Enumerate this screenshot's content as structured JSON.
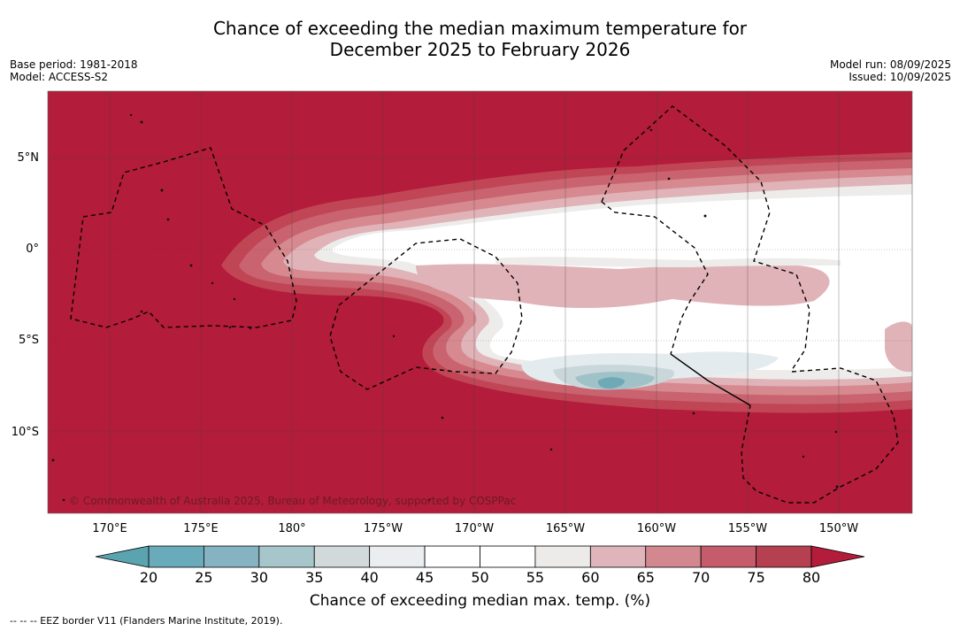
{
  "title": {
    "line1": "Chance of exceeding the median maximum temperature for",
    "line2": "December 2025 to February 2026"
  },
  "meta_left": {
    "base_period": "Base period: 1981-2018",
    "model": "Model: ACCESS-S2"
  },
  "meta_right": {
    "model_run": "Model run: 08/09/2025",
    "issued": "Issued: 10/09/2025"
  },
  "lat_labels": [
    "5°N",
    "0°",
    "5°S",
    "10°S"
  ],
  "lon_labels": [
    "170°E",
    "175°E",
    "180°",
    "175°W",
    "170°W",
    "165°W",
    "160°W",
    "155°W",
    "150°W"
  ],
  "copyright": "© Commonwealth of Australia 2025, Bureau of Meteorology, supported by COSPPac",
  "colorbar": {
    "ticks": [
      "20",
      "25",
      "30",
      "35",
      "40",
      "45",
      "50",
      "55",
      "60",
      "65",
      "70",
      "75",
      "80"
    ],
    "colors": [
      "#6aabbb",
      "#86b3c1",
      "#a7c6cc",
      "#d1d9db",
      "#eaeef1",
      "#ffffff",
      "#ffffff",
      "#ecebea",
      "#dfb4bb",
      "#d38890",
      "#c45c6b",
      "#b5404f"
    ],
    "under_color": "#5aa4b0",
    "over_color": "#b31c3a",
    "label": "Chance of exceeding median max. temp. (%)"
  },
  "footnote": "--  --  -- EEZ border V11 (Flanders Marine Institute, 2019)."
}
